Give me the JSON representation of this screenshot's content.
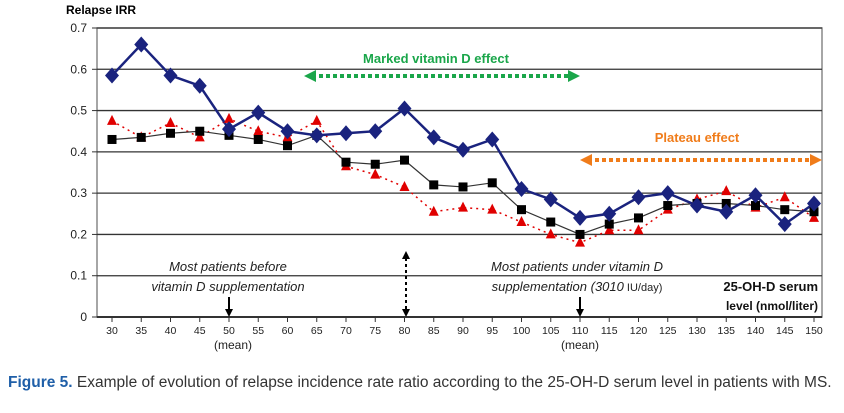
{
  "chart_data": {
    "type": "line",
    "ylabel": "Relapse IRR",
    "xlabel": "25-OH-D serum level (nmol/liter)",
    "xlabel_line1": "25-OH-D serum",
    "xlabel_line2": "level (nmol/liter)",
    "ylim": [
      0,
      0.7
    ],
    "yticks": [
      "0",
      "0.1",
      "0.2",
      "0.3",
      "0.4",
      "0.5",
      "0.6",
      "0.7"
    ],
    "x": [
      30,
      35,
      40,
      45,
      50,
      55,
      60,
      65,
      70,
      75,
      80,
      85,
      90,
      95,
      100,
      105,
      110,
      115,
      120,
      125,
      130,
      135,
      140,
      145,
      150
    ],
    "grid": true,
    "series": [
      {
        "name": "blue-diamond",
        "color": "#1a237e",
        "values": [
          0.585,
          0.66,
          0.585,
          0.56,
          0.455,
          0.495,
          0.45,
          0.44,
          0.445,
          0.45,
          0.505,
          0.435,
          0.405,
          0.43,
          0.31,
          0.285,
          0.24,
          0.25,
          0.29,
          0.3,
          0.27,
          0.255,
          0.295,
          0.225,
          0.275
        ]
      },
      {
        "name": "black-square",
        "color": "#000000",
        "values": [
          0.43,
          0.435,
          0.445,
          0.45,
          0.44,
          0.43,
          0.415,
          0.44,
          0.375,
          0.37,
          0.38,
          0.32,
          0.315,
          0.325,
          0.26,
          0.23,
          0.2,
          0.225,
          0.24,
          0.27,
          0.275,
          0.275,
          0.27,
          0.26,
          0.255
        ]
      },
      {
        "name": "red-triangle",
        "color": "#e00000",
        "values": [
          0.475,
          0.435,
          0.47,
          0.435,
          0.48,
          0.45,
          0.435,
          0.475,
          0.365,
          0.345,
          0.315,
          0.255,
          0.265,
          0.26,
          0.23,
          0.2,
          0.18,
          0.21,
          0.21,
          0.26,
          0.285,
          0.305,
          0.265,
          0.29,
          0.24
        ]
      }
    ],
    "mean_label": "(mean)",
    "annotations": {
      "marked": "Marked vitamin D effect",
      "plateau": "Plateau effect",
      "before1": "Most patients before",
      "before2": "vitamin D supplementation",
      "under1": "Most patients under vitamin D",
      "under2": "supplementation (",
      "under_dose": "3010",
      "under_unit": " IU/day)"
    },
    "colors": {
      "green": "#1aa64a",
      "orange": "#f07c1a"
    }
  },
  "caption": {
    "label": "Figure 5.",
    "text": " Example of evolution of relapse incidence rate ratio according to the 25-OH-D serum level in patients with MS."
  }
}
